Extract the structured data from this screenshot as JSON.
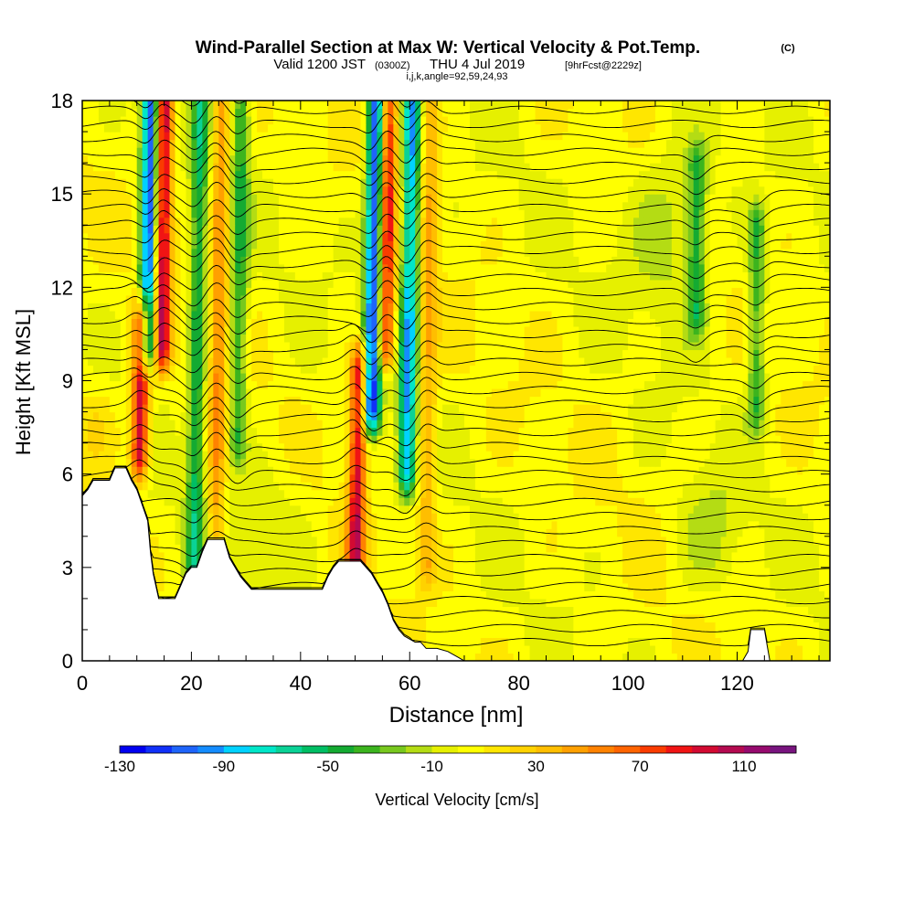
{
  "title": {
    "main": "Wind-Parallel Section at Max W: Vertical Velocity & Pot.Temp.",
    "copyright": "(C)",
    "valid_prefix": "Valid 1200 JST",
    "valid_utc": "(0300Z)",
    "valid_date": "THU 4 Jul 2019",
    "forecast": "[9hrFcst@2229z]",
    "ijk": "i,j,k,angle=92,59,24,93"
  },
  "colorbar": {
    "label": "Vertical Velocity [cm/s]",
    "tick_labels": [
      "-130",
      "-90",
      "-50",
      "-10",
      "30",
      "70",
      "110"
    ],
    "colors": [
      "#0000f0",
      "#1030f8",
      "#1e64fa",
      "#148cff",
      "#00d2ff",
      "#00e6c8",
      "#0ad296",
      "#00be64",
      "#14aa32",
      "#3cb41e",
      "#78c81e",
      "#b4dc14",
      "#e6f000",
      "#ffff00",
      "#ffe600",
      "#ffd200",
      "#ffbe00",
      "#ffa000",
      "#ff8200",
      "#ff6400",
      "#fa3c00",
      "#f01414",
      "#d20a32",
      "#b40a50",
      "#960a6e",
      "#78147e"
    ]
  },
  "chart_data": {
    "type": "heatmap",
    "title": "Wind-Parallel Section at Max W: Vertical Velocity & Pot.Temp.",
    "xlabel": "Distance [nm]",
    "ylabel": "Height [Kft MSL]",
    "xlim": [
      0,
      137
    ],
    "ylim": [
      0,
      18
    ],
    "x_ticks": [
      0,
      20,
      40,
      60,
      80,
      100,
      120
    ],
    "y_ticks": [
      0,
      3,
      6,
      9,
      12,
      15,
      18
    ],
    "variable": "Vertical Velocity [cm/s]",
    "color_levels": [
      -130,
      -120,
      -110,
      -100,
      -90,
      -80,
      -70,
      -60,
      -50,
      -40,
      -30,
      -20,
      -10,
      0,
      10,
      20,
      30,
      40,
      50,
      60,
      70,
      80,
      90,
      100,
      110,
      120
    ],
    "background_w": 5,
    "features": [
      {
        "kind": "updraft",
        "x": 10.5,
        "y_from": 6.5,
        "y_to": 11,
        "tilt": 0.45,
        "peak": 95
      },
      {
        "kind": "downdraft",
        "x": 12.0,
        "y_from": 10,
        "y_to": 18,
        "tilt": 0.35,
        "peak": -120
      },
      {
        "kind": "updraft",
        "x": 14.5,
        "y_from": 10,
        "y_to": 18,
        "tilt": 0.3,
        "peak": 100
      },
      {
        "kind": "downdraft",
        "x": 20.5,
        "y_from": 3,
        "y_to": 18,
        "tilt": 0.4,
        "peak": -55
      },
      {
        "kind": "updraft",
        "x": 24.5,
        "y_from": 4,
        "y_to": 18,
        "tilt": 0.35,
        "peak": 45
      },
      {
        "kind": "downdraft",
        "x": 28.5,
        "y_from": 7,
        "y_to": 18,
        "tilt": 0.3,
        "peak": -45
      },
      {
        "kind": "updraft",
        "x": 50.0,
        "y_from": 3.2,
        "y_to": 9.5,
        "tilt": 0.6,
        "peak": 90
      },
      {
        "kind": "downdraft",
        "x": 53.0,
        "y_from": 8,
        "y_to": 18,
        "tilt": 0.45,
        "peak": -125
      },
      {
        "kind": "updraft",
        "x": 55.5,
        "y_from": 10,
        "y_to": 18,
        "tilt": 0.35,
        "peak": 85
      },
      {
        "kind": "downdraft",
        "x": 59.5,
        "y_from": 6,
        "y_to": 18,
        "tilt": 0.4,
        "peak": -95
      },
      {
        "kind": "updraft",
        "x": 63.0,
        "y_from": 3,
        "y_to": 18,
        "tilt": 0.3,
        "peak": 35
      },
      {
        "kind": "downdraft",
        "x": 112.5,
        "y_from": 11,
        "y_to": 16,
        "tilt": 0.2,
        "peak": -45
      },
      {
        "kind": "downdraft",
        "x": 123.5,
        "y_from": 8,
        "y_to": 14,
        "tilt": 0.1,
        "peak": -45
      }
    ],
    "terrain": [
      [
        0,
        5.3
      ],
      [
        1,
        5.5
      ],
      [
        2,
        5.8
      ],
      [
        5,
        5.8
      ],
      [
        6,
        6.2
      ],
      [
        8,
        6.2
      ],
      [
        9,
        5.8
      ],
      [
        10,
        5.5
      ],
      [
        11,
        5.0
      ],
      [
        12,
        4.5
      ],
      [
        12.5,
        3.5
      ],
      [
        13,
        2.8
      ],
      [
        14,
        2.0
      ],
      [
        17,
        2.0
      ],
      [
        18,
        2.4
      ],
      [
        19,
        2.8
      ],
      [
        20,
        3.0
      ],
      [
        21,
        3.0
      ],
      [
        22,
        3.5
      ],
      [
        23,
        3.9
      ],
      [
        26,
        3.9
      ],
      [
        27,
        3.3
      ],
      [
        28,
        3.0
      ],
      [
        29,
        2.7
      ],
      [
        30,
        2.5
      ],
      [
        31,
        2.3
      ],
      [
        44,
        2.3
      ],
      [
        45,
        2.7
      ],
      [
        46,
        3.0
      ],
      [
        47,
        3.2
      ],
      [
        51,
        3.2
      ],
      [
        52,
        3.0
      ],
      [
        53,
        2.8
      ],
      [
        54,
        2.5
      ],
      [
        55,
        2.2
      ],
      [
        56,
        1.8
      ],
      [
        57,
        1.3
      ],
      [
        58,
        1.0
      ],
      [
        59,
        0.8
      ],
      [
        61,
        0.6
      ],
      [
        62,
        0.6
      ],
      [
        63,
        0.4
      ],
      [
        65,
        0.4
      ],
      [
        67,
        0.3
      ],
      [
        69,
        0.1
      ],
      [
        70,
        0.0
      ],
      [
        121,
        0.0
      ],
      [
        122,
        0.3
      ],
      [
        122.5,
        1.0
      ],
      [
        125,
        1.0
      ],
      [
        125.5,
        0.5
      ],
      [
        126,
        0.0
      ],
      [
        137,
        0.0
      ]
    ],
    "potential_temperature_contours": {
      "count": 40,
      "contour_color": "#000000"
    }
  }
}
